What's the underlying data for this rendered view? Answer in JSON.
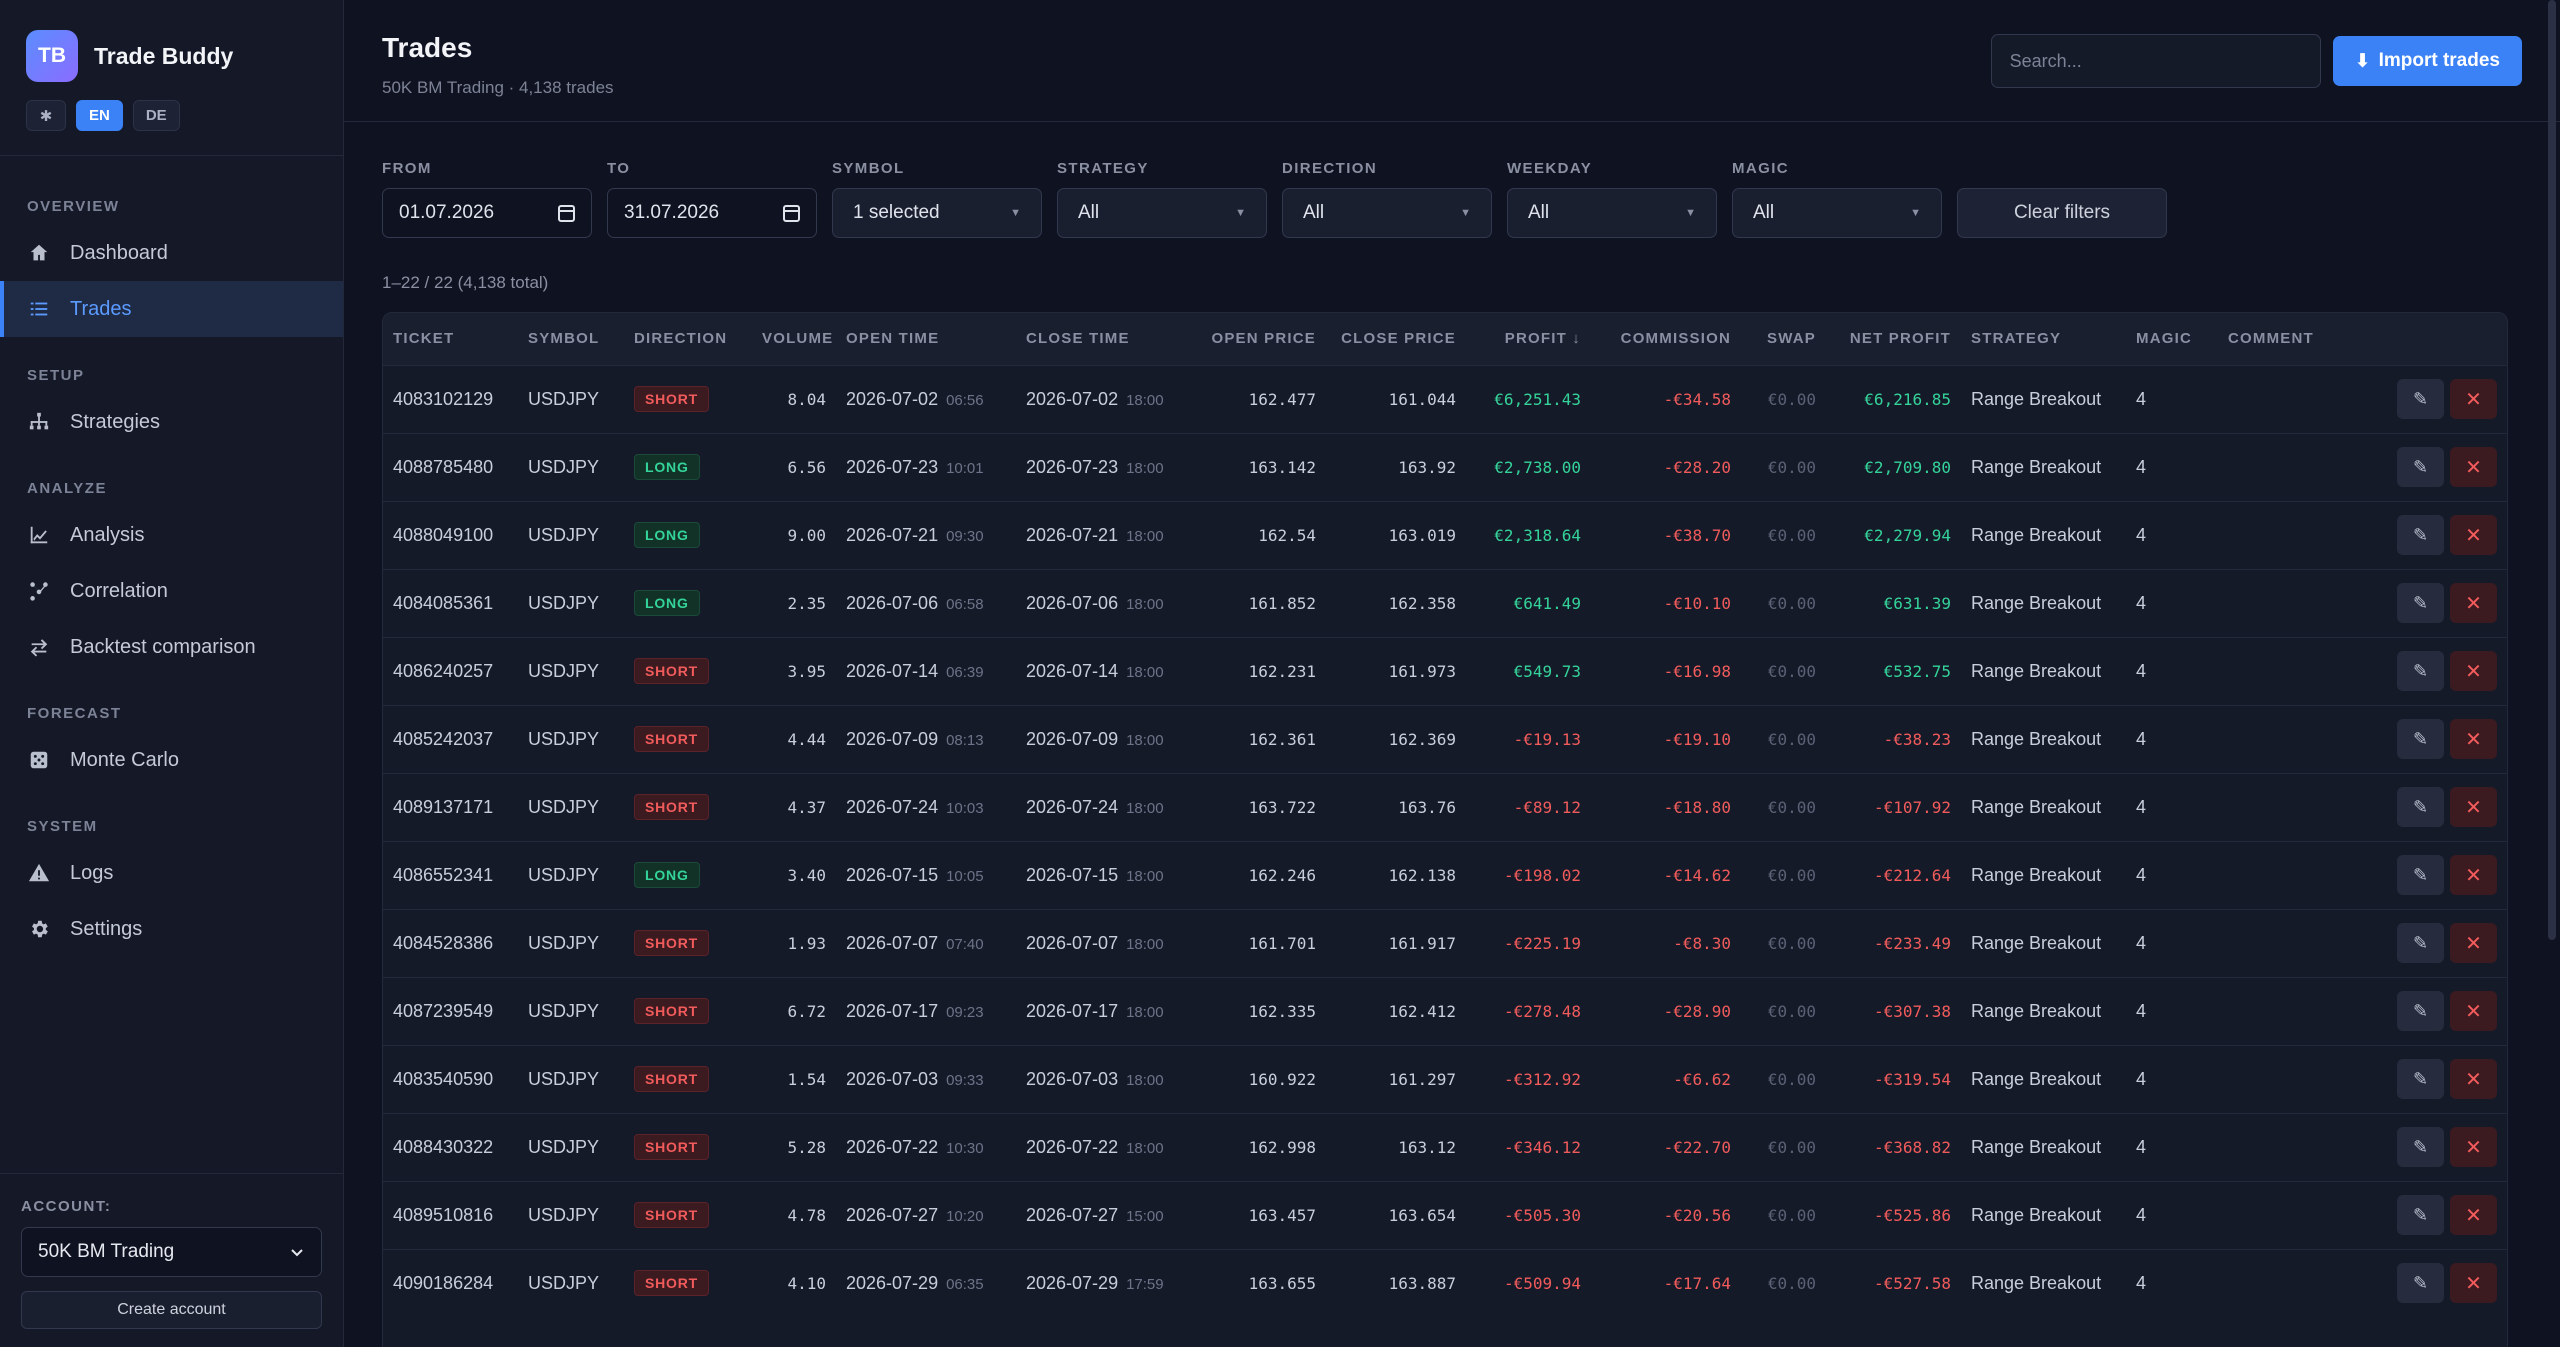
{
  "app": {
    "logo": "TB",
    "name": "Trade Buddy",
    "lang_buttons": [
      "✱",
      "EN",
      "DE"
    ]
  },
  "nav": {
    "sections": [
      {
        "title": "OVERVIEW",
        "items": [
          {
            "label": "Dashboard",
            "icon": "home-icon"
          },
          {
            "label": "Trades",
            "icon": "list-icon",
            "active": true
          }
        ]
      },
      {
        "title": "SETUP",
        "items": [
          {
            "label": "Strategies",
            "icon": "hierarchy-icon"
          }
        ]
      },
      {
        "title": "ANALYZE",
        "items": [
          {
            "label": "Analysis",
            "icon": "line-chart-icon"
          },
          {
            "label": "Correlation",
            "icon": "correlation-icon"
          },
          {
            "label": "Backtest comparison",
            "icon": "swap-icon"
          }
        ]
      },
      {
        "title": "FORECAST",
        "items": [
          {
            "label": "Monte Carlo",
            "icon": "dice-icon"
          }
        ]
      },
      {
        "title": "SYSTEM",
        "items": [
          {
            "label": "Logs",
            "icon": "warning-icon"
          },
          {
            "label": "Settings",
            "icon": "gear-icon"
          }
        ]
      }
    ]
  },
  "account": {
    "label": "ACCOUNT:",
    "selected": "50K BM Trading",
    "create_label": "Create account"
  },
  "header": {
    "title": "Trades",
    "subtitle": "50K BM Trading · 4,138 trades",
    "search_placeholder": "Search...",
    "import_label": "Import trades"
  },
  "filters": {
    "from": {
      "label": "FROM",
      "value": "01.07.2026"
    },
    "to": {
      "label": "TO",
      "value": "31.07.2026"
    },
    "symbol": {
      "label": "SYMBOL",
      "value": "1 selected"
    },
    "strategy": {
      "label": "STRATEGY",
      "value": "All"
    },
    "direction": {
      "label": "DIRECTION",
      "value": "All"
    },
    "weekday": {
      "label": "WEEKDAY",
      "value": "All"
    },
    "magic": {
      "label": "MAGIC",
      "value": "All"
    },
    "clear_label": "Clear filters"
  },
  "count_text": "1–22 / 22 (4,138 total)",
  "table": {
    "columns": [
      "TICKET",
      "SYMBOL",
      "DIRECTION",
      "VOLUME",
      "OPEN TIME",
      "CLOSE TIME",
      "OPEN PRICE",
      "CLOSE PRICE",
      "PROFIT ↓",
      "COMMISSION",
      "SWAP",
      "NET PROFIT",
      "STRATEGY",
      "MAGIC",
      "COMMENT"
    ],
    "rows": [
      {
        "ticket": "4083102129",
        "symbol": "USDJPY",
        "direction": "SHORT",
        "volume": "8.04",
        "open_date": "2026-07-02",
        "open_time": "06:56",
        "close_date": "2026-07-02",
        "close_time": "18:00",
        "open_price": "162.477",
        "close_price": "161.044",
        "profit": "€6,251.43",
        "commission": "-€34.58",
        "swap": "€0.00",
        "net": "€6,216.85",
        "strategy": "Range Breakout",
        "magic": "4",
        "comment": ""
      },
      {
        "ticket": "4088785480",
        "symbol": "USDJPY",
        "direction": "LONG",
        "volume": "6.56",
        "open_date": "2026-07-23",
        "open_time": "10:01",
        "close_date": "2026-07-23",
        "close_time": "18:00",
        "open_price": "163.142",
        "close_price": "163.92",
        "profit": "€2,738.00",
        "commission": "-€28.20",
        "swap": "€0.00",
        "net": "€2,709.80",
        "strategy": "Range Breakout",
        "magic": "4",
        "comment": ""
      },
      {
        "ticket": "4088049100",
        "symbol": "USDJPY",
        "direction": "LONG",
        "volume": "9.00",
        "open_date": "2026-07-21",
        "open_time": "09:30",
        "close_date": "2026-07-21",
        "close_time": "18:00",
        "open_price": "162.54",
        "close_price": "163.019",
        "profit": "€2,318.64",
        "commission": "-€38.70",
        "swap": "€0.00",
        "net": "€2,279.94",
        "strategy": "Range Breakout",
        "magic": "4",
        "comment": ""
      },
      {
        "ticket": "4084085361",
        "symbol": "USDJPY",
        "direction": "LONG",
        "volume": "2.35",
        "open_date": "2026-07-06",
        "open_time": "06:58",
        "close_date": "2026-07-06",
        "close_time": "18:00",
        "open_price": "161.852",
        "close_price": "162.358",
        "profit": "€641.49",
        "commission": "-€10.10",
        "swap": "€0.00",
        "net": "€631.39",
        "strategy": "Range Breakout",
        "magic": "4",
        "comment": ""
      },
      {
        "ticket": "4086240257",
        "symbol": "USDJPY",
        "direction": "SHORT",
        "volume": "3.95",
        "open_date": "2026-07-14",
        "open_time": "06:39",
        "close_date": "2026-07-14",
        "close_time": "18:00",
        "open_price": "162.231",
        "close_price": "161.973",
        "profit": "€549.73",
        "commission": "-€16.98",
        "swap": "€0.00",
        "net": "€532.75",
        "strategy": "Range Breakout",
        "magic": "4",
        "comment": ""
      },
      {
        "ticket": "4085242037",
        "symbol": "USDJPY",
        "direction": "SHORT",
        "volume": "4.44",
        "open_date": "2026-07-09",
        "open_time": "08:13",
        "close_date": "2026-07-09",
        "close_time": "18:00",
        "open_price": "162.361",
        "close_price": "162.369",
        "profit": "-€19.13",
        "commission": "-€19.10",
        "swap": "€0.00",
        "net": "-€38.23",
        "strategy": "Range Breakout",
        "magic": "4",
        "comment": ""
      },
      {
        "ticket": "4089137171",
        "symbol": "USDJPY",
        "direction": "SHORT",
        "volume": "4.37",
        "open_date": "2026-07-24",
        "open_time": "10:03",
        "close_date": "2026-07-24",
        "close_time": "18:00",
        "open_price": "163.722",
        "close_price": "163.76",
        "profit": "-€89.12",
        "commission": "-€18.80",
        "swap": "€0.00",
        "net": "-€107.92",
        "strategy": "Range Breakout",
        "magic": "4",
        "comment": ""
      },
      {
        "ticket": "4086552341",
        "symbol": "USDJPY",
        "direction": "LONG",
        "volume": "3.40",
        "open_date": "2026-07-15",
        "open_time": "10:05",
        "close_date": "2026-07-15",
        "close_time": "18:00",
        "open_price": "162.246",
        "close_price": "162.138",
        "profit": "-€198.02",
        "commission": "-€14.62",
        "swap": "€0.00",
        "net": "-€212.64",
        "strategy": "Range Breakout",
        "magic": "4",
        "comment": ""
      },
      {
        "ticket": "4084528386",
        "symbol": "USDJPY",
        "direction": "SHORT",
        "volume": "1.93",
        "open_date": "2026-07-07",
        "open_time": "07:40",
        "close_date": "2026-07-07",
        "close_time": "18:00",
        "open_price": "161.701",
        "close_price": "161.917",
        "profit": "-€225.19",
        "commission": "-€8.30",
        "swap": "€0.00",
        "net": "-€233.49",
        "strategy": "Range Breakout",
        "magic": "4",
        "comment": ""
      },
      {
        "ticket": "4087239549",
        "symbol": "USDJPY",
        "direction": "SHORT",
        "volume": "6.72",
        "open_date": "2026-07-17",
        "open_time": "09:23",
        "close_date": "2026-07-17",
        "close_time": "18:00",
        "open_price": "162.335",
        "close_price": "162.412",
        "profit": "-€278.48",
        "commission": "-€28.90",
        "swap": "€0.00",
        "net": "-€307.38",
        "strategy": "Range Breakout",
        "magic": "4",
        "comment": ""
      },
      {
        "ticket": "4083540590",
        "symbol": "USDJPY",
        "direction": "SHORT",
        "volume": "1.54",
        "open_date": "2026-07-03",
        "open_time": "09:33",
        "close_date": "2026-07-03",
        "close_time": "18:00",
        "open_price": "160.922",
        "close_price": "161.297",
        "profit": "-€312.92",
        "commission": "-€6.62",
        "swap": "€0.00",
        "net": "-€319.54",
        "strategy": "Range Breakout",
        "magic": "4",
        "comment": ""
      },
      {
        "ticket": "4088430322",
        "symbol": "USDJPY",
        "direction": "SHORT",
        "volume": "5.28",
        "open_date": "2026-07-22",
        "open_time": "10:30",
        "close_date": "2026-07-22",
        "close_time": "18:00",
        "open_price": "162.998",
        "close_price": "163.12",
        "profit": "-€346.12",
        "commission": "-€22.70",
        "swap": "€0.00",
        "net": "-€368.82",
        "strategy": "Range Breakout",
        "magic": "4",
        "comment": ""
      },
      {
        "ticket": "4089510816",
        "symbol": "USDJPY",
        "direction": "SHORT",
        "volume": "4.78",
        "open_date": "2026-07-27",
        "open_time": "10:20",
        "close_date": "2026-07-27",
        "close_time": "15:00",
        "open_price": "163.457",
        "close_price": "163.654",
        "profit": "-€505.30",
        "commission": "-€20.56",
        "swap": "€0.00",
        "net": "-€525.86",
        "strategy": "Range Breakout",
        "magic": "4",
        "comment": ""
      },
      {
        "ticket": "4090186284",
        "symbol": "USDJPY",
        "direction": "SHORT",
        "volume": "4.10",
        "open_date": "2026-07-29",
        "open_time": "06:35",
        "close_date": "2026-07-29",
        "close_time": "17:59",
        "open_price": "163.655",
        "close_price": "163.887",
        "profit": "-€509.94",
        "commission": "-€17.64",
        "swap": "€0.00",
        "net": "-€527.58",
        "strategy": "Range Breakout",
        "magic": "4",
        "comment": ""
      }
    ],
    "edit_glyph": "✎",
    "delete_glyph": "✕"
  },
  "colors": {
    "accent": "#3b82f6",
    "positive": "#34d399",
    "negative": "#f15b5b",
    "background": "#0f1220"
  }
}
